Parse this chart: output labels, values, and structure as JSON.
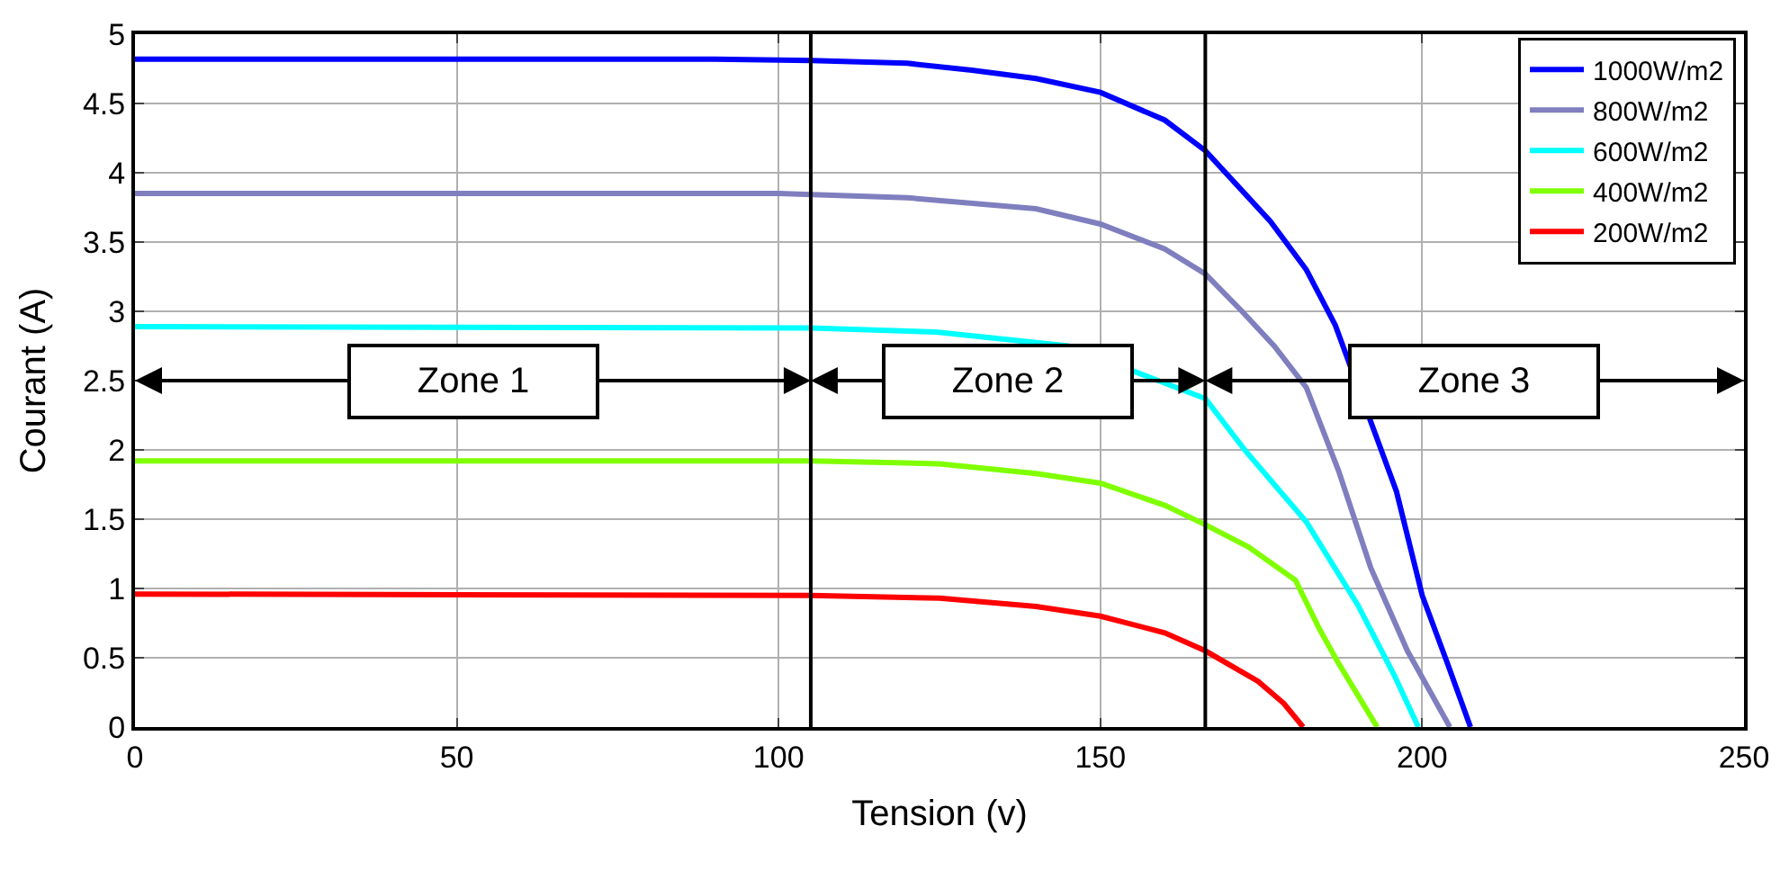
{
  "chart_data": {
    "type": "line",
    "xlabel": "Tension (v)",
    "ylabel": "Courant (A)",
    "xlim": [
      0,
      250
    ],
    "xticks": [
      0,
      50,
      100,
      150,
      200,
      250
    ],
    "ylim": [
      0,
      5
    ],
    "yticks": [
      0,
      0.5,
      1,
      1.5,
      2,
      2.5,
      3,
      3.5,
      4,
      4.5,
      5
    ],
    "grid": true,
    "legend": "top right",
    "marker": "none",
    "line_style": "solid",
    "series": [
      {
        "name": "1000W/m2",
        "color": "#0000ff",
        "x": [
          0,
          50,
          90,
          105,
          120,
          130,
          140,
          150,
          160,
          166.3,
          176.4,
          182,
          186.5,
          192,
          196,
          200,
          204,
          207.5
        ],
        "values": [
          4.82,
          4.82,
          4.82,
          4.81,
          4.79,
          4.74,
          4.68,
          4.58,
          4.38,
          4.16,
          3.65,
          3.3,
          2.9,
          null,
          1.7,
          0.95,
          0.45,
          0
        ]
      },
      {
        "name": "800W/m2",
        "color": "#7f7fbf",
        "x": [
          0,
          100,
          120,
          140,
          150,
          160,
          166.3,
          172,
          177,
          182,
          187,
          192,
          197.7,
          204.3
        ],
        "values": [
          3.85,
          3.85,
          3.82,
          3.74,
          3.63,
          3.45,
          3.27,
          3.0,
          2.75,
          2.45,
          1.85,
          1.15,
          0.55,
          0
        ]
      },
      {
        "name": "600W/m2",
        "color": "#00ffff",
        "x": [
          0,
          105,
          124.5,
          145,
          159,
          166.3,
          172.6,
          182,
          190,
          195.7,
          199.4
        ],
        "values": [
          2.89,
          2.88,
          2.85,
          2.75,
          2.5,
          2.37,
          1.99,
          1.48,
          0.88,
          0.37,
          0
        ]
      },
      {
        "name": "400W/m2",
        "color": "#80ff00",
        "x": [
          0,
          105,
          125,
          140,
          150,
          160,
          166.3,
          173,
          180.3,
          184,
          187,
          193
        ],
        "values": [
          1.92,
          1.92,
          1.9,
          1.83,
          1.76,
          1.6,
          1.46,
          1.3,
          1.06,
          0.71,
          0.46,
          0
        ]
      },
      {
        "name": "200W/m2",
        "color": "#ff0000",
        "x": [
          0,
          105,
          125,
          140,
          150,
          160,
          166.3,
          174.5,
          178.5,
          181.5
        ],
        "values": [
          0.96,
          0.95,
          0.93,
          0.87,
          0.8,
          0.68,
          0.55,
          0.33,
          0.17,
          0
        ]
      }
    ],
    "ref_lines": [
      {
        "axis": "x",
        "value": 105,
        "color": "#000000"
      },
      {
        "axis": "x",
        "value": 166.3,
        "color": "#000000"
      }
    ],
    "annotations": [
      "Zone 1",
      "Zone 2",
      "Zone 3"
    ]
  }
}
